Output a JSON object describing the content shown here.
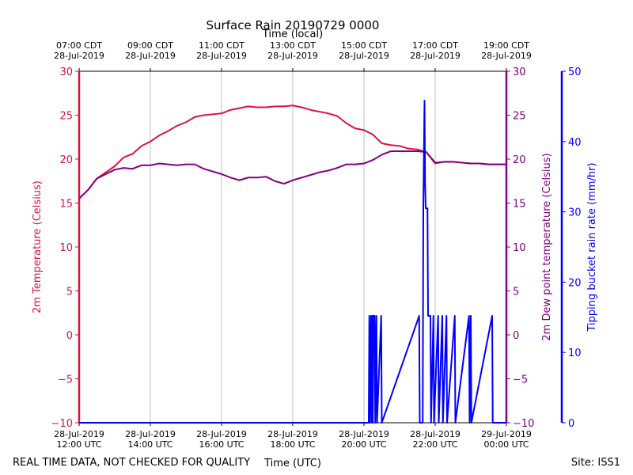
{
  "chart_data": {
    "type": "line",
    "title": "Surface Rain 20190729 0000",
    "xlabel": "Time (UTC)",
    "x2label": "Time (local)",
    "ylabel": "2m Temperature (Celsius)",
    "y2label": "2m Dew point temperature (Celsius)",
    "y3label": "Tipping bucket rain rate (mm/hr)",
    "footer_left": "REAL TIME DATA, NOT CHECKED FOR QUALITY",
    "footer_right": "Site: ISS1",
    "grid": true,
    "xlim": [
      "2019-07-28T12:00",
      "2019-07-29T00:00"
    ],
    "xticks": [
      {
        "value": "2019-07-28T12:00",
        "label": "28-Jul-2019\n12:00 UTC"
      },
      {
        "value": "2019-07-28T14:00",
        "label": "28-Jul-2019\n14:00 UTC"
      },
      {
        "value": "2019-07-28T16:00",
        "label": "28-Jul-2019\n16:00 UTC"
      },
      {
        "value": "2019-07-28T18:00",
        "label": "28-Jul-2019\n18:00 UTC"
      },
      {
        "value": "2019-07-28T20:00",
        "label": "28-Jul-2019\n20:00 UTC"
      },
      {
        "value": "2019-07-28T22:00",
        "label": "28-Jul-2019\n22:00 UTC"
      },
      {
        "value": "2019-07-29T00:00",
        "label": "29-Jul-2019\n00:00 UTC"
      }
    ],
    "x2ticks": [
      {
        "value": "2019-07-28T12:00",
        "label": "07:00 CDT\n28-Jul-2019"
      },
      {
        "value": "2019-07-28T14:00",
        "label": "09:00 CDT\n28-Jul-2019"
      },
      {
        "value": "2019-07-28T16:00",
        "label": "11:00 CDT\n28-Jul-2019"
      },
      {
        "value": "2019-07-28T18:00",
        "label": "13:00 CDT\n28-Jul-2019"
      },
      {
        "value": "2019-07-28T20:00",
        "label": "15:00 CDT\n28-Jul-2019"
      },
      {
        "value": "2019-07-28T22:00",
        "label": "17:00 CDT\n28-Jul-2019"
      },
      {
        "value": "2019-07-29T00:00",
        "label": "19:00 CDT\n28-Jul-2019"
      }
    ],
    "ylim": [
      -10,
      30
    ],
    "yticks": [
      {
        "value": -10,
        "label": "−10"
      },
      {
        "value": -5,
        "label": "−5"
      },
      0,
      5,
      10,
      15,
      20,
      25,
      30
    ],
    "y2lim": [
      -10,
      30
    ],
    "y2ticks": [
      {
        "value": -10,
        "label": "−10"
      },
      {
        "value": -5,
        "label": "−5"
      },
      0,
      5,
      10,
      15,
      20,
      25,
      30
    ],
    "y3lim": [
      0,
      50
    ],
    "y3ticks": [
      0,
      10,
      20,
      30,
      40,
      50
    ],
    "x": [
      "2019-07-28T12:00",
      "2019-07-28T12:15",
      "2019-07-28T12:30",
      "2019-07-28T12:45",
      "2019-07-28T13:00",
      "2019-07-28T13:15",
      "2019-07-28T13:30",
      "2019-07-28T13:45",
      "2019-07-28T14:00",
      "2019-07-28T14:15",
      "2019-07-28T14:30",
      "2019-07-28T14:45",
      "2019-07-28T15:00",
      "2019-07-28T15:15",
      "2019-07-28T15:30",
      "2019-07-28T15:45",
      "2019-07-28T16:00",
      "2019-07-28T16:15",
      "2019-07-28T16:30",
      "2019-07-28T16:45",
      "2019-07-28T17:00",
      "2019-07-28T17:15",
      "2019-07-28T17:30",
      "2019-07-28T17:45",
      "2019-07-28T18:00",
      "2019-07-28T18:15",
      "2019-07-28T18:30",
      "2019-07-28T18:45",
      "2019-07-28T19:00",
      "2019-07-28T19:15",
      "2019-07-28T19:30",
      "2019-07-28T19:45",
      "2019-07-28T20:00",
      "2019-07-28T20:15",
      "2019-07-28T20:30",
      "2019-07-28T20:45",
      "2019-07-28T21:00",
      "2019-07-28T21:15",
      "2019-07-28T21:30",
      "2019-07-28T21:45",
      "2019-07-28T22:00",
      "2019-07-28T22:15",
      "2019-07-28T22:30",
      "2019-07-28T22:45",
      "2019-07-28T23:00",
      "2019-07-28T23:15",
      "2019-07-28T23:30",
      "2019-07-28T23:45",
      "2019-07-29T00:00"
    ],
    "series": [
      {
        "name": "2m Temperature",
        "color": "#dc143c",
        "axis": "y",
        "values": [
          15.5,
          16.5,
          17.8,
          18.5,
          19.2,
          20.2,
          20.6,
          21.5,
          22.0,
          22.7,
          23.2,
          23.8,
          24.2,
          24.8,
          25.0,
          25.1,
          25.2,
          25.6,
          25.8,
          26.0,
          25.9,
          25.9,
          26.0,
          26.0,
          26.1,
          25.9,
          25.6,
          25.4,
          25.2,
          24.9,
          24.1,
          23.5,
          23.3,
          22.8,
          21.8,
          21.6,
          21.5,
          21.2,
          21.1,
          20.8,
          19.5,
          19.7,
          19.7,
          19.6,
          19.5,
          19.5,
          19.4,
          19.4,
          19.4
        ]
      },
      {
        "name": "2m Dew point temperature",
        "color": "#800080",
        "axis": "y2",
        "values": [
          15.5,
          16.5,
          17.8,
          18.3,
          18.8,
          19.0,
          18.9,
          19.3,
          19.3,
          19.5,
          19.4,
          19.3,
          19.4,
          19.4,
          18.9,
          18.6,
          18.3,
          17.9,
          17.6,
          17.9,
          17.9,
          18.0,
          17.5,
          17.2,
          17.6,
          17.9,
          18.2,
          18.5,
          18.7,
          19.0,
          19.4,
          19.4,
          19.5,
          19.9,
          20.5,
          20.9,
          20.9,
          20.9,
          20.9,
          20.8,
          19.6,
          19.7,
          19.7,
          19.6,
          19.5,
          19.5,
          19.4,
          19.4,
          19.4
        ]
      },
      {
        "name": "Tipping bucket rain rate",
        "color": "#0000ff",
        "axis": "y3",
        "x": [
          "2019-07-28T12:00",
          "2019-07-28T20:08",
          "2019-07-28T20:09",
          "2019-07-28T20:10",
          "2019-07-28T20:12",
          "2019-07-28T20:13",
          "2019-07-28T20:14",
          "2019-07-28T20:15",
          "2019-07-28T20:16",
          "2019-07-28T20:18",
          "2019-07-28T20:19",
          "2019-07-28T20:21",
          "2019-07-28T20:22",
          "2019-07-28T20:29",
          "2019-07-28T20:30",
          "2019-07-28T21:33",
          "2019-07-28T21:34",
          "2019-07-28T21:39",
          "2019-07-28T21:40",
          "2019-07-28T21:42",
          "2019-07-28T21:43",
          "2019-07-28T21:44",
          "2019-07-28T21:47",
          "2019-07-28T21:48",
          "2019-07-28T21:52",
          "2019-07-28T21:53",
          "2019-07-28T21:57",
          "2019-07-28T21:58",
          "2019-07-28T22:05",
          "2019-07-28T22:06",
          "2019-07-28T22:12",
          "2019-07-28T22:13",
          "2019-07-28T22:19",
          "2019-07-28T22:20",
          "2019-07-28T22:33",
          "2019-07-28T22:34",
          "2019-07-28T22:57",
          "2019-07-28T22:58",
          "2019-07-28T23:00",
          "2019-07-28T23:01",
          "2019-07-28T23:36",
          "2019-07-28T23:37",
          "2019-07-29T00:00"
        ],
        "values": [
          0,
          0,
          15.2,
          0,
          15.2,
          0,
          15.2,
          0,
          15.2,
          15.2,
          0,
          15.2,
          0,
          15.2,
          0,
          15.2,
          0,
          0,
          30.5,
          45.8,
          34,
          30.5,
          30.5,
          15.2,
          15.2,
          0,
          15.2,
          0,
          15.2,
          0,
          15.2,
          0,
          15.2,
          0,
          15.2,
          0,
          15.2,
          0,
          15.2,
          0,
          15.2,
          0,
          0
        ]
      }
    ]
  }
}
